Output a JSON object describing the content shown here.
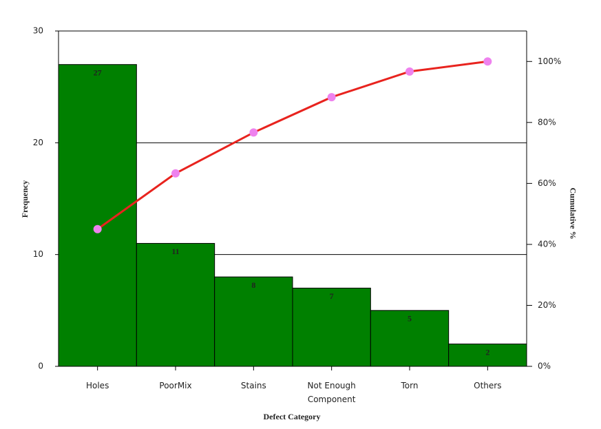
{
  "chart_data": {
    "type": "pareto",
    "x_label": "Defect Category",
    "y_label": "Frequency",
    "y2_label": "Cumulative %",
    "categories": [
      "Holes",
      "PoorMix",
      "Stains",
      "Not Enough Component",
      "Torn",
      "Others"
    ],
    "values": [
      27,
      11,
      8,
      7,
      5,
      2
    ],
    "color": "#008000",
    "cumulative": {
      "values": [
        45,
        63.3,
        76.7,
        88.3,
        96.7,
        100
      ],
      "color": "#e8231e",
      "marker_color": "#ee82ee",
      "axis": "y2"
    },
    "ylim": [
      0,
      30
    ],
    "yticks": [
      0,
      10,
      20,
      30
    ],
    "y2lim": [
      0,
      110
    ],
    "y2ticks": [
      {
        "value": 0,
        "label": "0%"
      },
      {
        "value": 20,
        "label": "20%"
      },
      {
        "value": 40,
        "label": "40%"
      },
      {
        "value": 60,
        "label": "60%"
      },
      {
        "value": 80,
        "label": "80%"
      },
      {
        "value": 100,
        "label": "100%"
      }
    ],
    "grid": true
  }
}
